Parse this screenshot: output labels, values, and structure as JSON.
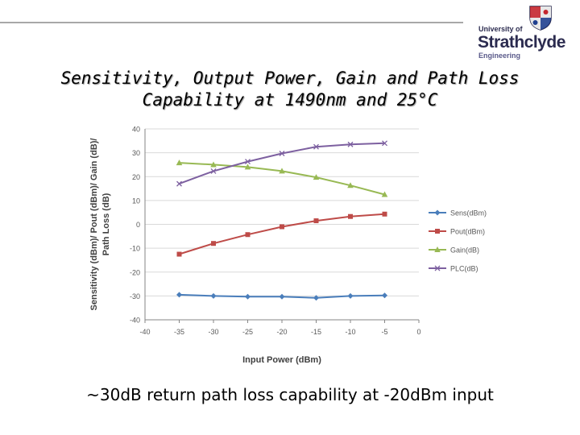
{
  "title": {
    "line1": "Sensitivity, Output Power, Gain and Path Loss",
    "line2": "Capability at 1490nm and 25°C"
  },
  "logo": {
    "university": "University of",
    "name": "Strathclyde",
    "department": "Engineering",
    "colors": {
      "text": "#2b2b4f",
      "crest_red": "#c4262e",
      "crest_blue": "#1f3f8f"
    }
  },
  "caption": "~30dB return path loss capability at -20dBm input",
  "chart_data": {
    "type": "line",
    "xlabel": "Input Power (dBm)",
    "ylabel_lines": [
      "Sensitivity (dBm)/ Pout (dBm)/ Gain (dB)/",
      "Path Loss (dB)"
    ],
    "xlim": [
      -40,
      0
    ],
    "ylim": [
      -40,
      40
    ],
    "xticks": [
      -40,
      -35,
      -30,
      -25,
      -20,
      -15,
      -10,
      -5,
      0
    ],
    "yticks": [
      40,
      30,
      20,
      10,
      0,
      -10,
      -20,
      -30,
      -40
    ],
    "grid": true,
    "legend_position": "right",
    "x": [
      -35,
      -30,
      -25,
      -20,
      -15,
      -10,
      -5
    ],
    "series": [
      {
        "name": "Sens(dBm)",
        "color": "#4a7ebb",
        "marker": "diamond",
        "values": [
          -29.5,
          -30.0,
          -30.3,
          -30.3,
          -30.8,
          -30.0,
          -29.8
        ]
      },
      {
        "name": "Pout(dBm)",
        "color": "#be4b48",
        "marker": "square",
        "values": [
          -12.5,
          -8.0,
          -4.3,
          -1.0,
          1.5,
          3.3,
          4.3
        ]
      },
      {
        "name": "Gain(dB)",
        "color": "#98b954",
        "marker": "triangle",
        "values": [
          25.8,
          25.0,
          24.0,
          22.3,
          19.7,
          16.3,
          12.5
        ]
      },
      {
        "name": "PLC(dB)",
        "color": "#7d60a0",
        "marker": "x",
        "values": [
          17.0,
          22.3,
          26.3,
          29.7,
          32.5,
          33.5,
          34.0
        ]
      }
    ]
  }
}
